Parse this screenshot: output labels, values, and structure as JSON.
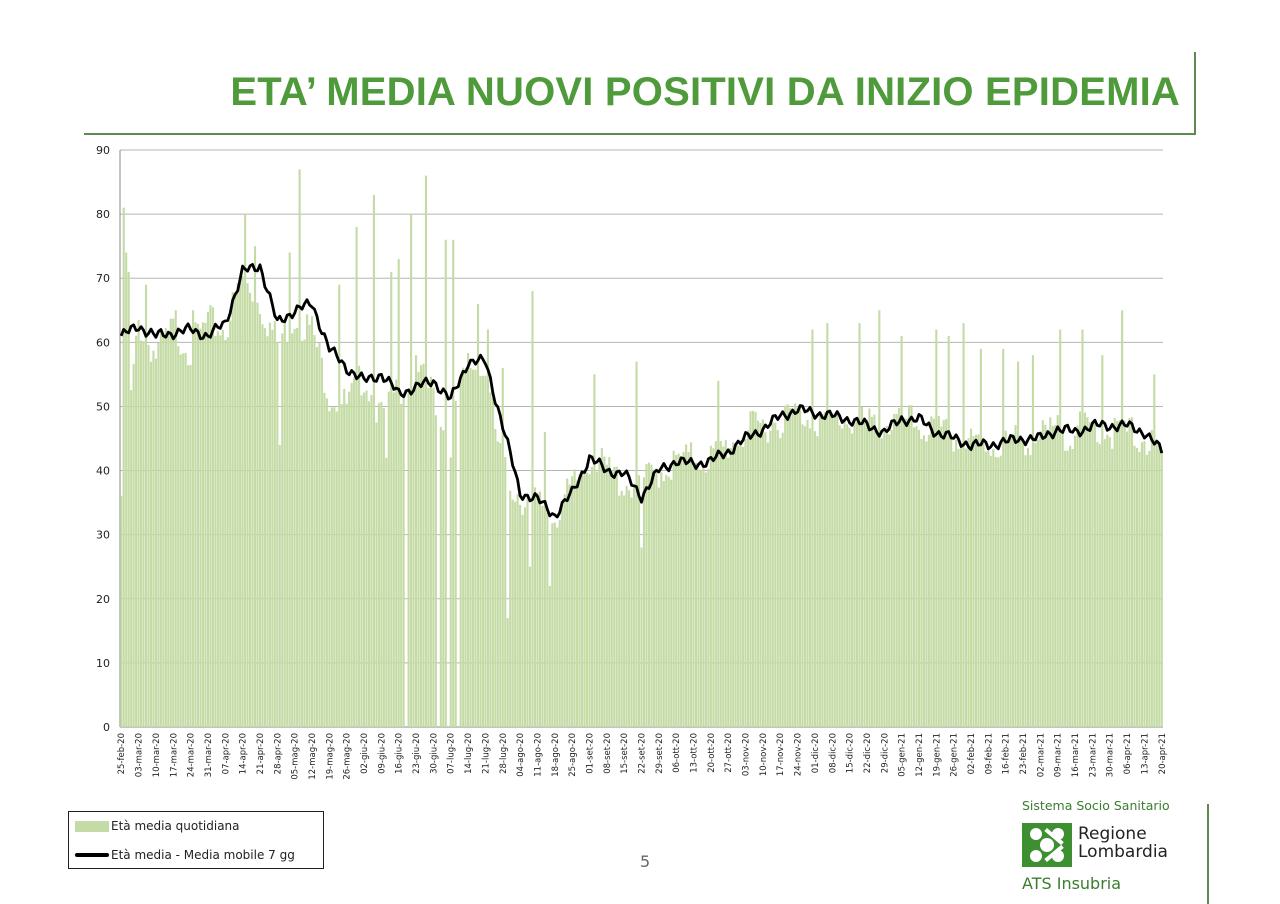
{
  "slide": {
    "title": "ETA’ MEDIA NUOVI POSITIVI DA INIZIO EPIDEMIA",
    "page_number": "5",
    "accent_color": "#4f9a3a"
  },
  "logo": {
    "top_text": "Sistema Socio Sanitario",
    "name_line1": "Regione",
    "name_line2": "Lombardia",
    "sub_text": "ATS Insubria",
    "mark_color": "#3e8e32",
    "icon": "regione-lombardia-rose-icon"
  },
  "chart_data": {
    "type": "bar",
    "ylim": [
      0,
      90
    ],
    "y_ticks": [
      0,
      10,
      20,
      30,
      40,
      50,
      60,
      70,
      80,
      90
    ],
    "grid": true,
    "legend_position": "bottom-left",
    "x_range": [
      "2020-02-25",
      "2021-04-20"
    ],
    "x_tick_labels": [
      "25-feb-20",
      "03-mar-20",
      "10-mar-20",
      "17-mar-20",
      "24-mar-20",
      "31-mar-20",
      "07-apr-20",
      "14-apr-20",
      "21-apr-20",
      "28-apr-20",
      "05-mag-20",
      "12-mag-20",
      "19-mag-20",
      "26-mag-20",
      "02-giu-20",
      "09-giu-20",
      "16-giu-20",
      "23-giu-20",
      "30-giu-20",
      "07-lug-20",
      "14-lug-20",
      "21-lug-20",
      "28-lug-20",
      "04-ago-20",
      "11-ago-20",
      "18-ago-20",
      "25-ago-20",
      "01-set-20",
      "08-set-20",
      "15-set-20",
      "22-set-20",
      "29-set-20",
      "06-ott-20",
      "13-ott-20",
      "20-ott-20",
      "27-ott-20",
      "03-nov-20",
      "10-nov-20",
      "17-nov-20",
      "24-nov-20",
      "01-dic-20",
      "08-dic-20",
      "15-dic-20",
      "22-dic-20",
      "29-dic-20",
      "05-gen-21",
      "12-gen-21",
      "19-gen-21",
      "26-gen-21",
      "02-feb-21",
      "09-feb-21",
      "16-feb-21",
      "23-feb-21",
      "02-mar-21",
      "09-mar-21",
      "16-mar-21",
      "23-mar-21",
      "30-mar-21",
      "06-apr-21",
      "13-apr-21",
      "20-apr-21"
    ],
    "series": [
      {
        "name": "Età media quotidiana",
        "kind": "bar",
        "color": "#c4dba6",
        "weekly_values": [
          36,
          63,
          58,
          62,
          59,
          63,
          62,
          70,
          66,
          60,
          64,
          62,
          52,
          50,
          55,
          48,
          53,
          55,
          52,
          45,
          57,
          55,
          40,
          36,
          35,
          33,
          37,
          42,
          40,
          38,
          38,
          40,
          41,
          42,
          42,
          44,
          46,
          47,
          48,
          49,
          48,
          48,
          48,
          47,
          47,
          48,
          47,
          46,
          45,
          44,
          44,
          44,
          45,
          45,
          46,
          46,
          47,
          46,
          46,
          45,
          42
        ],
        "spikes": [
          {
            "date": "26-feb-20",
            "value": 81
          },
          {
            "date": "27-feb-20",
            "value": 74
          },
          {
            "date": "28-feb-20",
            "value": 71
          },
          {
            "date": "06-mar-20",
            "value": 69
          },
          {
            "date": "18-mar-20",
            "value": 65
          },
          {
            "date": "25-mar-20",
            "value": 65
          },
          {
            "date": "15-apr-20",
            "value": 80
          },
          {
            "date": "19-apr-20",
            "value": 75
          },
          {
            "date": "03-mag-20",
            "value": 74
          },
          {
            "date": "07-mag-20",
            "value": 87
          },
          {
            "date": "23-mag-20",
            "value": 69
          },
          {
            "date": "30-mag-20",
            "value": 78
          },
          {
            "date": "06-giu-20",
            "value": 83
          },
          {
            "date": "13-giu-20",
            "value": 71
          },
          {
            "date": "16-giu-20",
            "value": 73
          },
          {
            "date": "21-giu-20",
            "value": 80
          },
          {
            "date": "27-giu-20",
            "value": 86
          },
          {
            "date": "05-lug-20",
            "value": 76
          },
          {
            "date": "08-lug-20",
            "value": 76
          },
          {
            "date": "18-lug-20",
            "value": 66
          },
          {
            "date": "22-lug-20",
            "value": 62
          },
          {
            "date": "28-lug-20",
            "value": 56
          },
          {
            "date": "09-ago-20",
            "value": 68
          },
          {
            "date": "14-ago-20",
            "value": 46
          },
          {
            "date": "03-set-20",
            "value": 55
          },
          {
            "date": "20-set-20",
            "value": 57
          },
          {
            "date": "23-ott-20",
            "value": 54
          },
          {
            "date": "30-nov-20",
            "value": 62
          },
          {
            "date": "06-dic-20",
            "value": 63
          },
          {
            "date": "19-dic-20",
            "value": 63
          },
          {
            "date": "27-dic-20",
            "value": 65
          },
          {
            "date": "05-gen-21",
            "value": 61
          },
          {
            "date": "19-gen-21",
            "value": 62
          },
          {
            "date": "24-gen-21",
            "value": 61
          },
          {
            "date": "30-gen-21",
            "value": 63
          },
          {
            "date": "06-feb-21",
            "value": 59
          },
          {
            "date": "15-feb-21",
            "value": 59
          },
          {
            "date": "21-feb-21",
            "value": 57
          },
          {
            "date": "27-feb-21",
            "value": 58
          },
          {
            "date": "10-mar-21",
            "value": 62
          },
          {
            "date": "19-mar-21",
            "value": 62
          },
          {
            "date": "27-mar-21",
            "value": 58
          },
          {
            "date": "04-apr-21",
            "value": 65
          },
          {
            "date": "17-apr-21",
            "value": 55
          }
        ],
        "dips": [
          {
            "date": "25-feb-20",
            "value": 36
          },
          {
            "date": "29-apr-20",
            "value": 44
          },
          {
            "date": "11-giu-20",
            "value": 42
          },
          {
            "date": "19-giu-20",
            "value": 0
          },
          {
            "date": "02-lug-20",
            "value": 0
          },
          {
            "date": "06-lug-20",
            "value": 0
          },
          {
            "date": "10-lug-20",
            "value": 0
          },
          {
            "date": "30-lug-20",
            "value": 17
          },
          {
            "date": "08-ago-20",
            "value": 25
          },
          {
            "date": "16-ago-20",
            "value": 22
          },
          {
            "date": "22-set-20",
            "value": 28
          }
        ]
      },
      {
        "name": "Età media - Media mobile 7 gg",
        "kind": "line",
        "color": "#000000",
        "weekly_values": [
          61,
          62.5,
          61,
          61.5,
          62,
          61,
          63,
          71,
          72,
          63,
          65,
          66,
          59,
          56,
          54,
          55,
          52,
          53,
          54,
          51,
          57,
          57,
          47,
          36.5,
          35.5,
          33,
          36.5,
          42,
          40,
          39.5,
          36,
          40,
          41.5,
          41,
          41.5,
          43,
          45,
          46.5,
          48.5,
          49.5,
          49,
          48.5,
          48,
          47,
          46,
          48,
          48,
          46,
          45,
          44,
          44,
          44.5,
          45,
          45,
          46.5,
          46,
          47,
          47,
          47,
          46,
          43
        ]
      }
    ]
  }
}
